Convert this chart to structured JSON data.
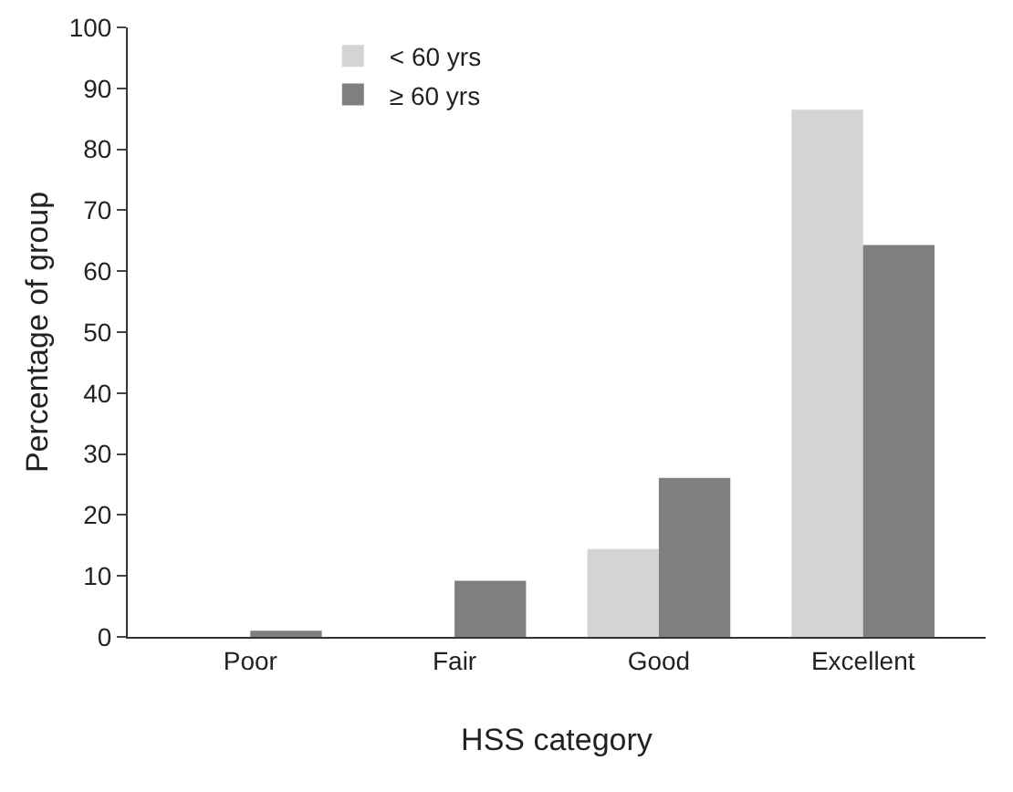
{
  "chart_data": {
    "type": "bar",
    "xlabel": "HSS category",
    "ylabel": "Percentage of group",
    "categories": [
      "Poor",
      "Fair",
      "Good",
      "Excellent"
    ],
    "series": [
      {
        "name": "< 60 yrs",
        "color": "#d4d4d4",
        "values": [
          0,
          0,
          14.4,
          86.5
        ]
      },
      {
        "name": "≥ 60 yrs",
        "color": "#7f7f7f",
        "values": [
          1,
          9.2,
          26.1,
          64.3
        ]
      }
    ],
    "ylim": [
      0,
      100
    ],
    "yticks": [
      0,
      10,
      20,
      30,
      40,
      50,
      60,
      70,
      80,
      90,
      100
    ],
    "grid": false,
    "legend": "top left"
  }
}
